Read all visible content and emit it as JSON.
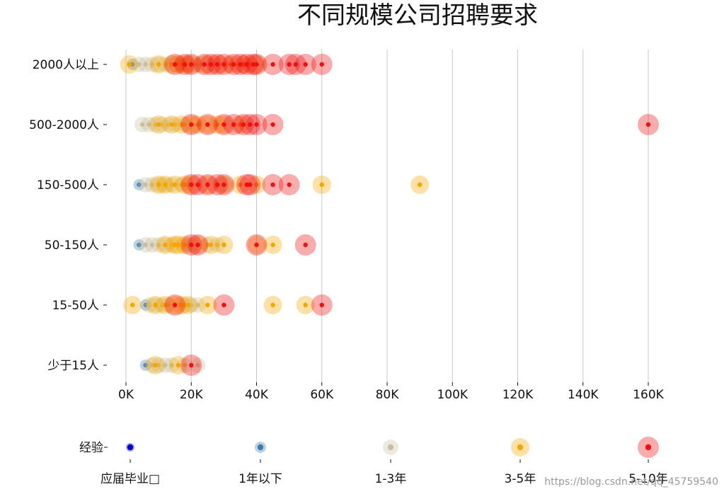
{
  "chart_data": {
    "type": "scatter",
    "title": "不同规模公司招聘要求",
    "x_ticks": [
      "0K",
      "20K",
      "40K",
      "60K",
      "80K",
      "100K",
      "120K",
      "140K",
      "160K"
    ],
    "xlim": [
      0,
      160
    ],
    "categories": [
      "少于15人",
      "15-50人",
      "50-150人",
      "150-500人",
      "500-2000人",
      "2000人以上"
    ],
    "grid": "vertical",
    "series": [
      {
        "name": "应届毕业生",
        "color": "#0000cc",
        "size_level": 1,
        "points": []
      },
      {
        "name": "1年以下",
        "color": "#3e7bab",
        "size_level": 2,
        "points": [
          {
            "x": 2,
            "category": "2000人以上"
          },
          {
            "x": 4,
            "category": "150-500人"
          },
          {
            "x": 4,
            "category": "50-150人"
          },
          {
            "x": 6,
            "category": "15-50人"
          },
          {
            "x": 6,
            "category": "少于15人"
          }
        ]
      },
      {
        "name": "1-3年",
        "color": "#c9bfa0",
        "size_level": 3,
        "points": [
          {
            "x": 4,
            "category": "2000人以上"
          },
          {
            "x": 6,
            "category": "2000人以上"
          },
          {
            "x": 8,
            "category": "2000人以上"
          },
          {
            "x": 10,
            "category": "2000人以上"
          },
          {
            "x": 12,
            "category": "2000人以上"
          },
          {
            "x": 15,
            "category": "2000人以上"
          },
          {
            "x": 18,
            "category": "2000人以上"
          },
          {
            "x": 22,
            "category": "2000人以上"
          },
          {
            "x": 5,
            "category": "500-2000人"
          },
          {
            "x": 7,
            "category": "500-2000人"
          },
          {
            "x": 9,
            "category": "500-2000人"
          },
          {
            "x": 11,
            "category": "500-2000人"
          },
          {
            "x": 13,
            "category": "500-2000人"
          },
          {
            "x": 15,
            "category": "500-2000人"
          },
          {
            "x": 18,
            "category": "500-2000人"
          },
          {
            "x": 6,
            "category": "150-500人"
          },
          {
            "x": 8,
            "category": "150-500人"
          },
          {
            "x": 10,
            "category": "150-500人"
          },
          {
            "x": 12,
            "category": "150-500人"
          },
          {
            "x": 14,
            "category": "150-500人"
          },
          {
            "x": 17,
            "category": "150-500人"
          },
          {
            "x": 30,
            "category": "150-500人"
          },
          {
            "x": 6,
            "category": "50-150人"
          },
          {
            "x": 8,
            "category": "50-150人"
          },
          {
            "x": 10,
            "category": "50-150人"
          },
          {
            "x": 12,
            "category": "50-150人"
          },
          {
            "x": 14,
            "category": "50-150人"
          },
          {
            "x": 18,
            "category": "50-150人"
          },
          {
            "x": 20,
            "category": "50-150人"
          },
          {
            "x": 25,
            "category": "50-150人"
          },
          {
            "x": 28,
            "category": "50-150人"
          },
          {
            "x": 7,
            "category": "15-50人"
          },
          {
            "x": 9,
            "category": "15-50人"
          },
          {
            "x": 11,
            "category": "15-50人"
          },
          {
            "x": 13,
            "category": "15-50人"
          },
          {
            "x": 18,
            "category": "15-50人"
          },
          {
            "x": 20,
            "category": "15-50人"
          },
          {
            "x": 22,
            "category": "15-50人"
          },
          {
            "x": 8,
            "category": "少于15人"
          },
          {
            "x": 10,
            "category": "少于15人"
          },
          {
            "x": 12,
            "category": "少于15人"
          },
          {
            "x": 14,
            "category": "少于15人"
          },
          {
            "x": 18,
            "category": "少于15人"
          },
          {
            "x": 22,
            "category": "少于15人"
          }
        ]
      },
      {
        "name": "3-5年",
        "color": "#f5a500",
        "size_level": 4,
        "points": [
          {
            "x": 1,
            "category": "2000人以上"
          },
          {
            "x": 10,
            "category": "2000人以上"
          },
          {
            "x": 14,
            "category": "2000人以上"
          },
          {
            "x": 16,
            "category": "2000人以上"
          },
          {
            "x": 18,
            "category": "2000人以上"
          },
          {
            "x": 20,
            "category": "2000人以上"
          },
          {
            "x": 24,
            "category": "2000人以上"
          },
          {
            "x": 28,
            "category": "2000人以上"
          },
          {
            "x": 32,
            "category": "2000人以上"
          },
          {
            "x": 36,
            "category": "2000人以上"
          },
          {
            "x": 40,
            "category": "2000人以上"
          },
          {
            "x": 10,
            "category": "500-2000人"
          },
          {
            "x": 14,
            "category": "500-2000人"
          },
          {
            "x": 17,
            "category": "500-2000人"
          },
          {
            "x": 20,
            "category": "500-2000人"
          },
          {
            "x": 22,
            "category": "500-2000人"
          },
          {
            "x": 25,
            "category": "500-2000人"
          },
          {
            "x": 28,
            "category": "500-2000人"
          },
          {
            "x": 30,
            "category": "500-2000人"
          },
          {
            "x": 35,
            "category": "500-2000人"
          },
          {
            "x": 10,
            "category": "150-500人"
          },
          {
            "x": 12,
            "category": "150-500人"
          },
          {
            "x": 15,
            "category": "150-500人"
          },
          {
            "x": 18,
            "category": "150-500人"
          },
          {
            "x": 20,
            "category": "150-500人"
          },
          {
            "x": 25,
            "category": "150-500人"
          },
          {
            "x": 30,
            "category": "150-500人"
          },
          {
            "x": 35,
            "category": "150-500人"
          },
          {
            "x": 40,
            "category": "150-500人"
          },
          {
            "x": 60,
            "category": "150-500人"
          },
          {
            "x": 90,
            "category": "150-500人"
          },
          {
            "x": 12,
            "category": "50-150人"
          },
          {
            "x": 15,
            "category": "50-150人"
          },
          {
            "x": 16,
            "category": "50-150人"
          },
          {
            "x": 18,
            "category": "50-150人"
          },
          {
            "x": 22,
            "category": "50-150人"
          },
          {
            "x": 26,
            "category": "50-150人"
          },
          {
            "x": 30,
            "category": "50-150人"
          },
          {
            "x": 40,
            "category": "50-150人"
          },
          {
            "x": 45,
            "category": "50-150人"
          },
          {
            "x": 2,
            "category": "15-50人"
          },
          {
            "x": 9,
            "category": "15-50人"
          },
          {
            "x": 12,
            "category": "15-50人"
          },
          {
            "x": 15,
            "category": "15-50人"
          },
          {
            "x": 17,
            "category": "15-50人"
          },
          {
            "x": 19,
            "category": "15-50人"
          },
          {
            "x": 25,
            "category": "15-50人"
          },
          {
            "x": 45,
            "category": "15-50人"
          },
          {
            "x": 55,
            "category": "15-50人"
          },
          {
            "x": 9,
            "category": "少于15人"
          },
          {
            "x": 16,
            "category": "少于15人"
          }
        ]
      },
      {
        "name": "5-10年",
        "color": "#ee1111",
        "size_level": 5,
        "points": [
          {
            "x": 15,
            "category": "2000人以上"
          },
          {
            "x": 18,
            "category": "2000人以上"
          },
          {
            "x": 20,
            "category": "2000人以上"
          },
          {
            "x": 24,
            "category": "2000人以上"
          },
          {
            "x": 26,
            "category": "2000人以上"
          },
          {
            "x": 28,
            "category": "2000人以上"
          },
          {
            "x": 30,
            "category": "2000人以上"
          },
          {
            "x": 33,
            "category": "2000人以上"
          },
          {
            "x": 35,
            "category": "2000人以上"
          },
          {
            "x": 37,
            "category": "2000人以上"
          },
          {
            "x": 39,
            "category": "2000人以上"
          },
          {
            "x": 40,
            "category": "2000人以上"
          },
          {
            "x": 45,
            "category": "2000人以上"
          },
          {
            "x": 50,
            "category": "2000人以上"
          },
          {
            "x": 52,
            "category": "2000人以上"
          },
          {
            "x": 55,
            "category": "2000人以上"
          },
          {
            "x": 60,
            "category": "2000人以上"
          },
          {
            "x": 20,
            "category": "500-2000人"
          },
          {
            "x": 25,
            "category": "500-2000人"
          },
          {
            "x": 30,
            "category": "500-2000人"
          },
          {
            "x": 33,
            "category": "500-2000人"
          },
          {
            "x": 36,
            "category": "500-2000人"
          },
          {
            "x": 38,
            "category": "500-2000人"
          },
          {
            "x": 40,
            "category": "500-2000人"
          },
          {
            "x": 45,
            "category": "500-2000人"
          },
          {
            "x": 160,
            "category": "500-2000人"
          },
          {
            "x": 20,
            "category": "150-500人"
          },
          {
            "x": 22,
            "category": "150-500人"
          },
          {
            "x": 25,
            "category": "150-500人"
          },
          {
            "x": 28,
            "category": "150-500人"
          },
          {
            "x": 30,
            "category": "150-500人"
          },
          {
            "x": 37,
            "category": "150-500人"
          },
          {
            "x": 38,
            "category": "150-500人"
          },
          {
            "x": 45,
            "category": "150-500人"
          },
          {
            "x": 50,
            "category": "150-500人"
          },
          {
            "x": 20,
            "category": "50-150人"
          },
          {
            "x": 22,
            "category": "50-150人"
          },
          {
            "x": 40,
            "category": "50-150人"
          },
          {
            "x": 55,
            "category": "50-150人"
          },
          {
            "x": 15,
            "category": "15-50人"
          },
          {
            "x": 30,
            "category": "15-50人"
          },
          {
            "x": 60,
            "category": "15-50人"
          },
          {
            "x": 20,
            "category": "少于15人"
          }
        ]
      }
    ],
    "legend": {
      "title": "经验",
      "placement": "bottom",
      "labels": [
        "应届毕业□",
        "1年以下",
        "1-3年",
        "3-5年",
        "5-10年"
      ]
    }
  },
  "watermark": "https://blog.csdn.net/qq_45759540"
}
